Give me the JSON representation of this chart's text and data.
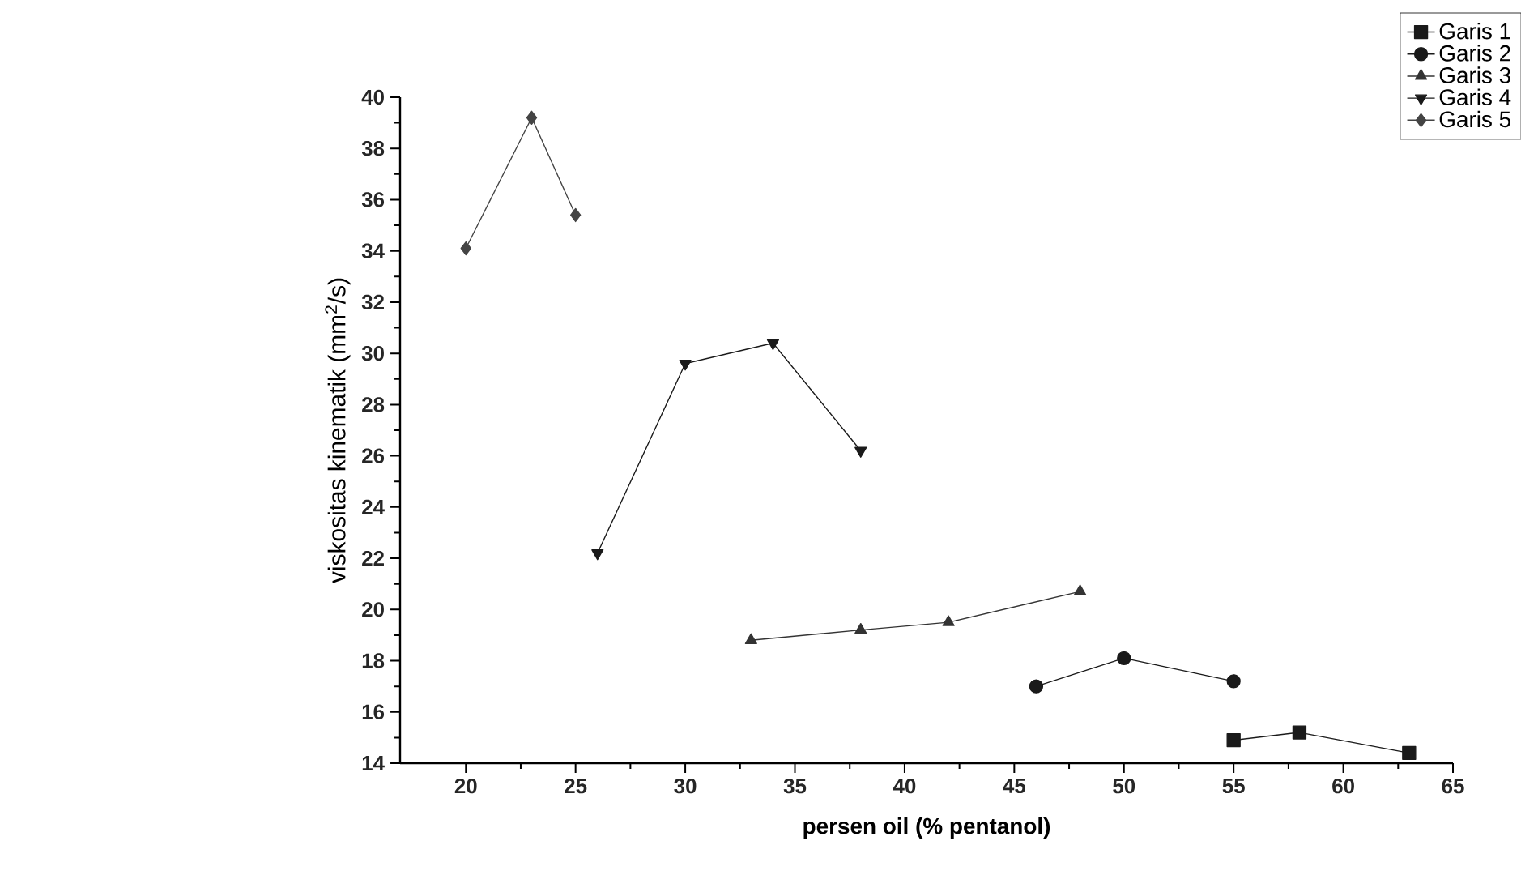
{
  "chart_data": {
    "type": "line",
    "xlabel": "persen oil (% pentanol)",
    "ylabel": "viskositas kinematik (mm$^{2}$/s)",
    "xlim": [
      17,
      65
    ],
    "xticks": [
      20,
      25,
      30,
      35,
      40,
      45,
      50,
      55,
      60,
      65
    ],
    "ylim": [
      14,
      40
    ],
    "yticks": [
      14,
      16,
      18,
      20,
      22,
      24,
      26,
      28,
      30,
      32,
      34,
      36,
      38,
      40
    ],
    "grid": false,
    "legend": "top right",
    "line_style": "solid",
    "series": [
      {
        "name": "Garis 1",
        "color": "#1a1a1a",
        "marker": "square",
        "x": [
          55,
          58,
          63
        ],
        "values": [
          14.9,
          15.2,
          14.4
        ]
      },
      {
        "name": "Garis 2",
        "color": "#1a1a1a",
        "marker": "circle",
        "x": [
          46,
          50,
          55
        ],
        "values": [
          17.0,
          18.1,
          17.2
        ]
      },
      {
        "name": "Garis 3",
        "color": "#333333",
        "marker": "triangle",
        "x": [
          33,
          38,
          42,
          48
        ],
        "values": [
          18.8,
          19.2,
          19.5,
          20.7
        ]
      },
      {
        "name": "Garis 4",
        "color": "#1a1a1a",
        "marker": "triangle-down",
        "x": [
          26,
          30,
          34,
          38
        ],
        "values": [
          22.2,
          29.6,
          30.4,
          26.2
        ]
      },
      {
        "name": "Garis 5",
        "color": "#444444",
        "marker": "diamond",
        "x": [
          20,
          23,
          25
        ],
        "values": [
          34.1,
          39.2,
          35.4
        ]
      }
    ]
  }
}
